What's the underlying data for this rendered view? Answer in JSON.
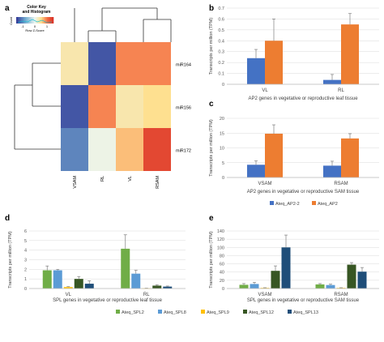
{
  "panel_labels": {
    "a": "a",
    "b": "b",
    "c": "c",
    "d": "d",
    "e": "e"
  },
  "colors": {
    "blue": "#4472c4",
    "orange": "#ed7d31",
    "spl2": "#70ad47",
    "spl8": "#5b9bd5",
    "spl9": "#ffc000",
    "spl12": "#375623",
    "spl13": "#1f4e79"
  },
  "chart_data": [
    {
      "id": "a",
      "type": "heatmap",
      "key_title": [
        "Color Key",
        "and Histogram"
      ],
      "key_ylabel": "Count",
      "key_xlabel": "Row Z-Score",
      "key_ticks": [
        "-1",
        "0",
        "1"
      ],
      "rows": [
        "miR164",
        "miR156",
        "miR172"
      ],
      "columns": [
        "VSAM",
        "RL",
        "VL",
        "RSAM"
      ],
      "values": [
        [
          0.35,
          -1.3,
          0.9,
          0.9
        ],
        [
          -1.3,
          0.9,
          0.35,
          0.5
        ],
        [
          -1.0,
          0.05,
          0.65,
          1.3
        ]
      ]
    },
    {
      "id": "b",
      "type": "bar",
      "ylabel": "Transcripts per million (TPM)",
      "xlabel": "AP2 genes in vegetative or reproductive leaf tissue",
      "categories": [
        "VL",
        "RL"
      ],
      "ylim": [
        0,
        0.7
      ],
      "yticks": [
        "0",
        "0.1",
        "0.2",
        "0.3",
        "0.4",
        "0.5",
        "0.6",
        "0.7"
      ],
      "series": [
        {
          "name": "Ateq_AP2-2",
          "values": [
            0.24,
            0.04
          ],
          "errors": [
            0.08,
            0.05
          ]
        },
        {
          "name": "Ateq_AP2",
          "values": [
            0.4,
            0.55
          ],
          "errors": [
            0.2,
            0.1
          ]
        }
      ]
    },
    {
      "id": "c",
      "type": "bar",
      "ylabel": "Transcripts per million (TPM)",
      "xlabel": "AP2 genes in vegetative or reproductive SAM tissue",
      "categories": [
        "VSAM",
        "RSAM"
      ],
      "ylim": [
        0,
        20
      ],
      "yticks": [
        "0",
        "5",
        "10",
        "15",
        "20"
      ],
      "legend": [
        "Ateq_AP2-2",
        "Ateq_AP2"
      ],
      "series": [
        {
          "name": "Ateq_AP2-2",
          "values": [
            4.3,
            4.0
          ],
          "errors": [
            1.3,
            1.5
          ]
        },
        {
          "name": "Ateq_AP2",
          "values": [
            14.8,
            13.2
          ],
          "errors": [
            3.0,
            1.6
          ]
        }
      ]
    },
    {
      "id": "d",
      "type": "bar",
      "ylabel": "Transcripts per million (TPM)",
      "xlabel": "SPL genes in vegetative or reproductive leaf tissue",
      "categories": [
        "VL",
        "RL"
      ],
      "ylim": [
        0,
        6
      ],
      "yticks": [
        "0",
        "1",
        "2",
        "3",
        "4",
        "5",
        "6"
      ],
      "series": [
        {
          "name": "Ateq_SPL2",
          "values": [
            1.9,
            4.15
          ],
          "errors": [
            0.45,
            1.45
          ]
        },
        {
          "name": "Ateq_SPL8",
          "values": [
            1.9,
            1.55
          ],
          "errors": [
            0.1,
            0.35
          ]
        },
        {
          "name": "Ateq_SPL9",
          "values": [
            0.15,
            0.02
          ],
          "errors": [
            0.05,
            0.02
          ]
        },
        {
          "name": "Ateq_SPL12",
          "values": [
            1.0,
            0.3
          ],
          "errors": [
            0.25,
            0.08
          ]
        },
        {
          "name": "Ateq_SPL13",
          "values": [
            0.5,
            0.2
          ],
          "errors": [
            0.3,
            0.06
          ]
        }
      ]
    },
    {
      "id": "e",
      "type": "bar",
      "ylabel": "Transcripts per million (TPM)",
      "xlabel": "SPL genes in vegetative or reproductive SAM tissue",
      "categories": [
        "VSAM",
        "RSAM"
      ],
      "ylim": [
        0,
        140
      ],
      "yticks": [
        "0",
        "20",
        "40",
        "60",
        "80",
        "100",
        "120",
        "140"
      ],
      "legend": [
        "Ateq_SPL2",
        "Ateq_SPL8",
        "Ateq_SPL9",
        "Ateq_SPL12",
        "Ateq_SPL13"
      ],
      "series": [
        {
          "name": "Ateq_SPL2",
          "values": [
            9,
            10
          ],
          "errors": [
            3,
            2
          ]
        },
        {
          "name": "Ateq_SPL8",
          "values": [
            11,
            8.5
          ],
          "errors": [
            4,
            2
          ]
        },
        {
          "name": "Ateq_SPL9",
          "values": [
            1.5,
            1.5
          ],
          "errors": [
            0.5,
            0.5
          ]
        },
        {
          "name": "Ateq_SPL12",
          "values": [
            43,
            58
          ],
          "errors": [
            12,
            5
          ]
        },
        {
          "name": "Ateq_SPL13",
          "values": [
            100,
            41
          ],
          "errors": [
            30,
            10
          ]
        }
      ]
    }
  ]
}
